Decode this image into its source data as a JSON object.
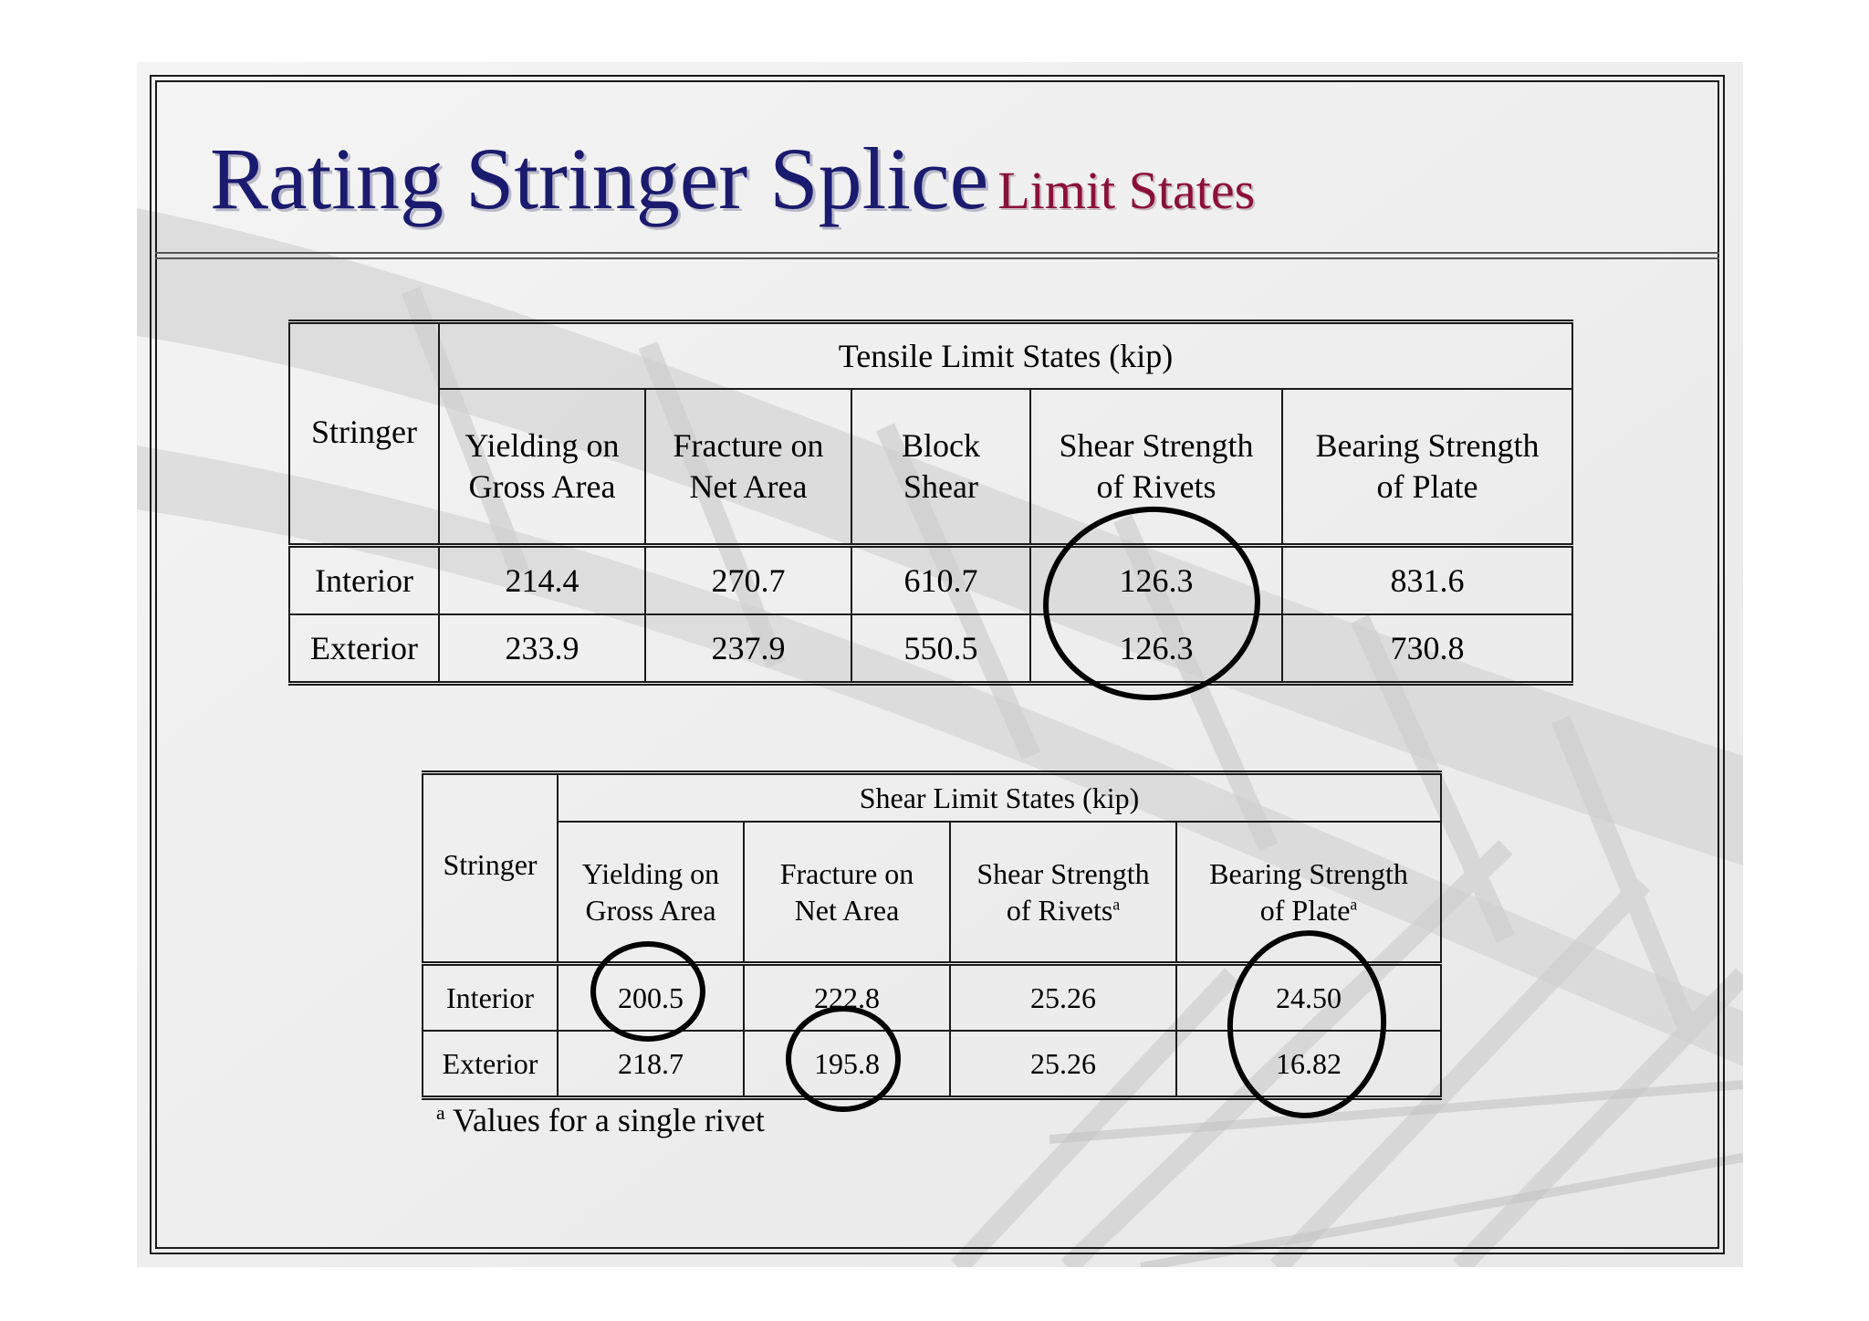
{
  "title": {
    "main": "Rating Stringer Splice",
    "sub": "Limit States"
  },
  "tensile": {
    "group_header": "Tensile Limit States (kip)",
    "stringer_header": "Stringer",
    "columns": [
      [
        "Yielding on",
        "Gross Area"
      ],
      [
        "Fracture on",
        "Net Area"
      ],
      [
        "Block",
        "Shear"
      ],
      [
        "Shear Strength",
        "of Rivets"
      ],
      [
        "Bearing Strength",
        "of Plate"
      ]
    ],
    "rows": [
      {
        "label": "Interior",
        "values": [
          "214.4",
          "270.7",
          "610.7",
          "126.3",
          "831.6"
        ]
      },
      {
        "label": "Exterior",
        "values": [
          "233.9",
          "237.9",
          "550.5",
          "126.3",
          "730.8"
        ]
      }
    ]
  },
  "shear": {
    "group_header": "Shear Limit States (kip)",
    "stringer_header": "Stringer",
    "columns": [
      [
        "Yielding on",
        "Gross Area",
        ""
      ],
      [
        "Fracture on",
        "Net Area",
        ""
      ],
      [
        "Shear Strength",
        "of Rivets",
        "a"
      ],
      [
        "Bearing Strength",
        "of Plate",
        "a"
      ]
    ],
    "rows": [
      {
        "label": "Interior",
        "values": [
          "200.5",
          "222.8",
          "25.26",
          "24.50"
        ]
      },
      {
        "label": "Exterior",
        "values": [
          "218.7",
          "195.8",
          "25.26",
          "16.82"
        ]
      }
    ]
  },
  "footnote": {
    "marker": "a",
    "text": " Values for a single rivet"
  }
}
